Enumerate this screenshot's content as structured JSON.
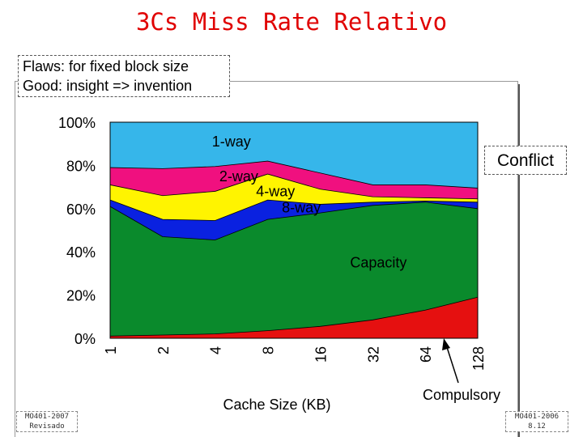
{
  "slide": {
    "title": "3Cs Miss Rate Relativo",
    "note_lines": [
      "Flaws: for fixed block size",
      "Good: insight => invention"
    ],
    "conflict_label": "Conflict",
    "footer_left": [
      "MO401-2007",
      "Revisado"
    ],
    "footer_right": [
      "MO401-2006",
      "8.12"
    ]
  },
  "chart_data": {
    "type": "area",
    "stacked": true,
    "xlabel": "Cache Size (KB)",
    "categories": [
      "1",
      "2",
      "4",
      "8",
      "16",
      "32",
      "64",
      "128"
    ],
    "y_ticks": [
      "0%",
      "20%",
      "40%",
      "60%",
      "80%",
      "100%"
    ],
    "ylim": [
      0,
      100
    ],
    "grid": false,
    "boundaries": [
      {
        "name": "Compulsory",
        "values": [
          1,
          1.5,
          2,
          3.5,
          5.5,
          8.5,
          13,
          19
        ]
      },
      {
        "name": "Capacity",
        "values": [
          61,
          47,
          45.5,
          55,
          58,
          61.5,
          63,
          60
        ]
      },
      {
        "name": "8-way",
        "values": [
          64,
          55,
          54.5,
          64,
          62,
          63,
          63.5,
          63
        ]
      },
      {
        "name": "4-way",
        "values": [
          71,
          66,
          68,
          76,
          69,
          65.5,
          65,
          64.5
        ]
      },
      {
        "name": "2-way",
        "values": [
          79,
          78.5,
          79.5,
          82,
          76.5,
          71,
          71,
          69.5
        ]
      },
      {
        "name": "1-way",
        "values": [
          100,
          100,
          100,
          100,
          100,
          100,
          100,
          100
        ]
      }
    ],
    "region_labels": [
      {
        "name": "1-way",
        "text": "1-way",
        "at": [
          3.3,
          91
        ]
      },
      {
        "name": "2-way",
        "text": "2-way",
        "at": [
          3.5,
          75
        ]
      },
      {
        "name": "4-way",
        "text": "4-way",
        "at": [
          4.5,
          68
        ]
      },
      {
        "name": "8-way",
        "text": "8-way",
        "at": [
          5.2,
          60.5
        ]
      },
      {
        "name": "capacity",
        "text": "Capacity",
        "at": [
          7.3,
          35
        ]
      }
    ],
    "compulsory_label": "Compulsory",
    "colors": {
      "1-way": "#36b6ea",
      "2-way": "#f0107f",
      "4-way": "#fff400",
      "8-way": "#0a21e0",
      "capacity": "#0a8a2c",
      "compulsory": "#e51010",
      "outline": "#000000"
    }
  }
}
